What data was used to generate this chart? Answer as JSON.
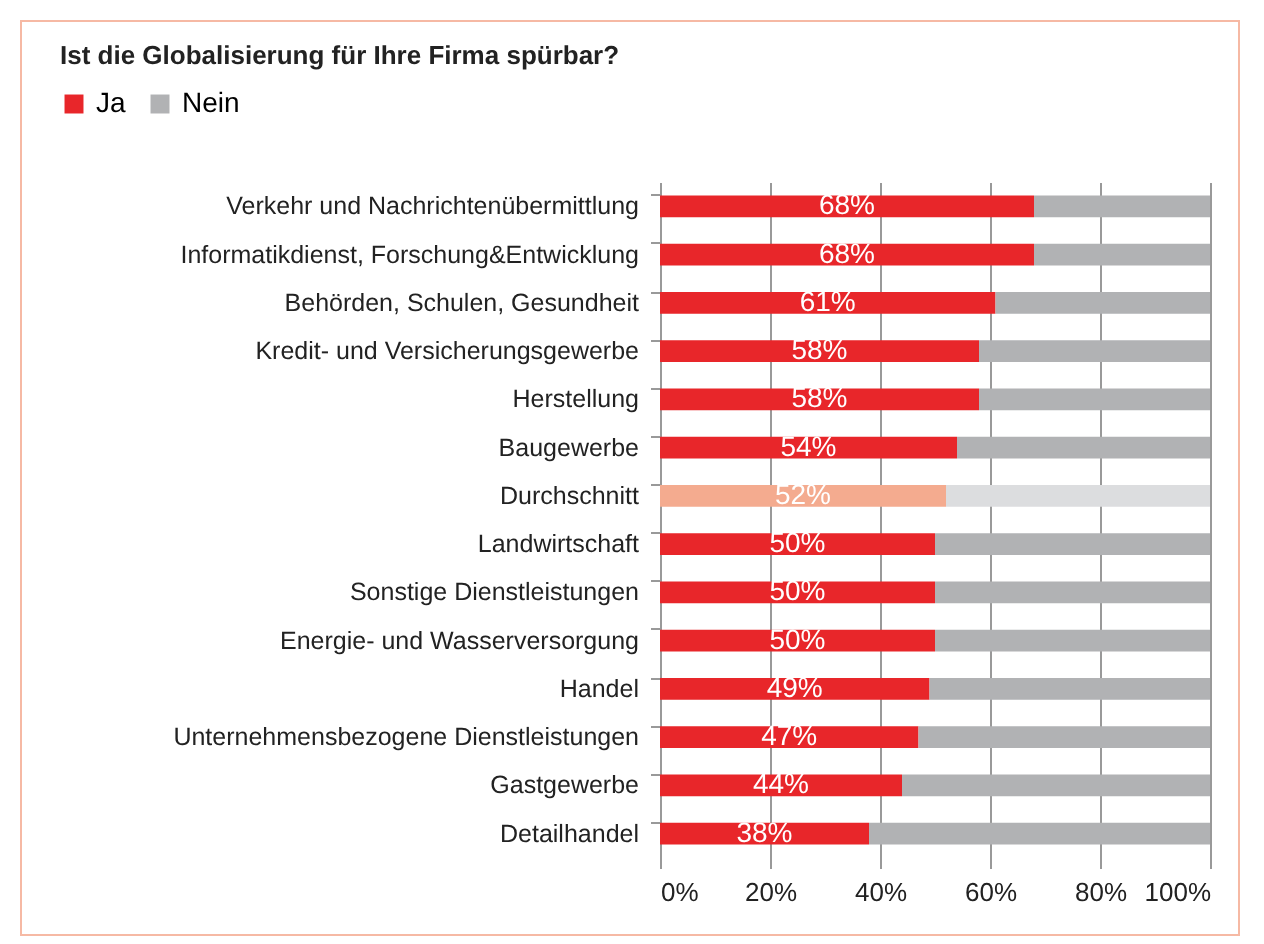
{
  "chart_data": {
    "type": "bar",
    "orientation": "horizontal",
    "stacked": true,
    "title": "Ist die Globalisierung für Ihre Firma spürbar?",
    "categories": [
      "Verkehr und Nachrichtenübermittlung",
      "Informatikdienst, Forschung&Entwicklung",
      "Behörden, Schulen, Gesundheit",
      "Kredit- und Versicherungsgewerbe",
      "Herstellung",
      "Baugewerbe",
      "Durchschnitt",
      "Landwirtschaft",
      "Sonstige Dienstleistungen",
      "Energie- und Wasserversorgung",
      "Handel",
      "Unternehmensbezogene Dienstleistungen",
      "Gastgewerbe",
      "Detailhandel"
    ],
    "series": [
      {
        "name": "Ja",
        "color": "#e8262a",
        "colors": [
          "#e8262a",
          "#e8262a",
          "#e8262a",
          "#e8262a",
          "#e8262a",
          "#e8262a",
          "#f4ab8f",
          "#e8262a",
          "#e8262a",
          "#e8262a",
          "#e8262a",
          "#e8262a",
          "#e8262a",
          "#e8262a"
        ],
        "values": [
          68,
          68,
          61,
          58,
          58,
          54,
          52,
          50,
          50,
          50,
          49,
          47,
          44,
          38
        ],
        "value_labels": [
          "68%",
          "68%",
          "61%",
          "58%",
          "58%",
          "54%",
          "52%",
          "50%",
          "50%",
          "50%",
          "49%",
          "47%",
          "44%",
          "38%"
        ]
      },
      {
        "name": "Nein",
        "color": "#b1b2b4",
        "colors": [
          "#b1b2b4",
          "#b1b2b4",
          "#b1b2b4",
          "#b1b2b4",
          "#b1b2b4",
          "#b1b2b4",
          "#dcdddf",
          "#b1b2b4",
          "#b1b2b4",
          "#b1b2b4",
          "#b1b2b4",
          "#b1b2b4",
          "#b1b2b4",
          "#b1b2b4"
        ],
        "values": [
          32,
          32,
          39,
          42,
          42,
          46,
          48,
          50,
          50,
          50,
          51,
          53,
          56,
          62
        ]
      }
    ],
    "xlim": [
      0,
      100
    ],
    "xticks": [
      {
        "value": 0,
        "label": "0%"
      },
      {
        "value": 20,
        "label": "20%"
      },
      {
        "value": 40,
        "label": "40%"
      },
      {
        "value": 60,
        "label": "60%"
      },
      {
        "value": 80,
        "label": "80%"
      },
      {
        "value": 100,
        "label": "100%"
      }
    ],
    "grid": "x",
    "legend": "top left"
  }
}
